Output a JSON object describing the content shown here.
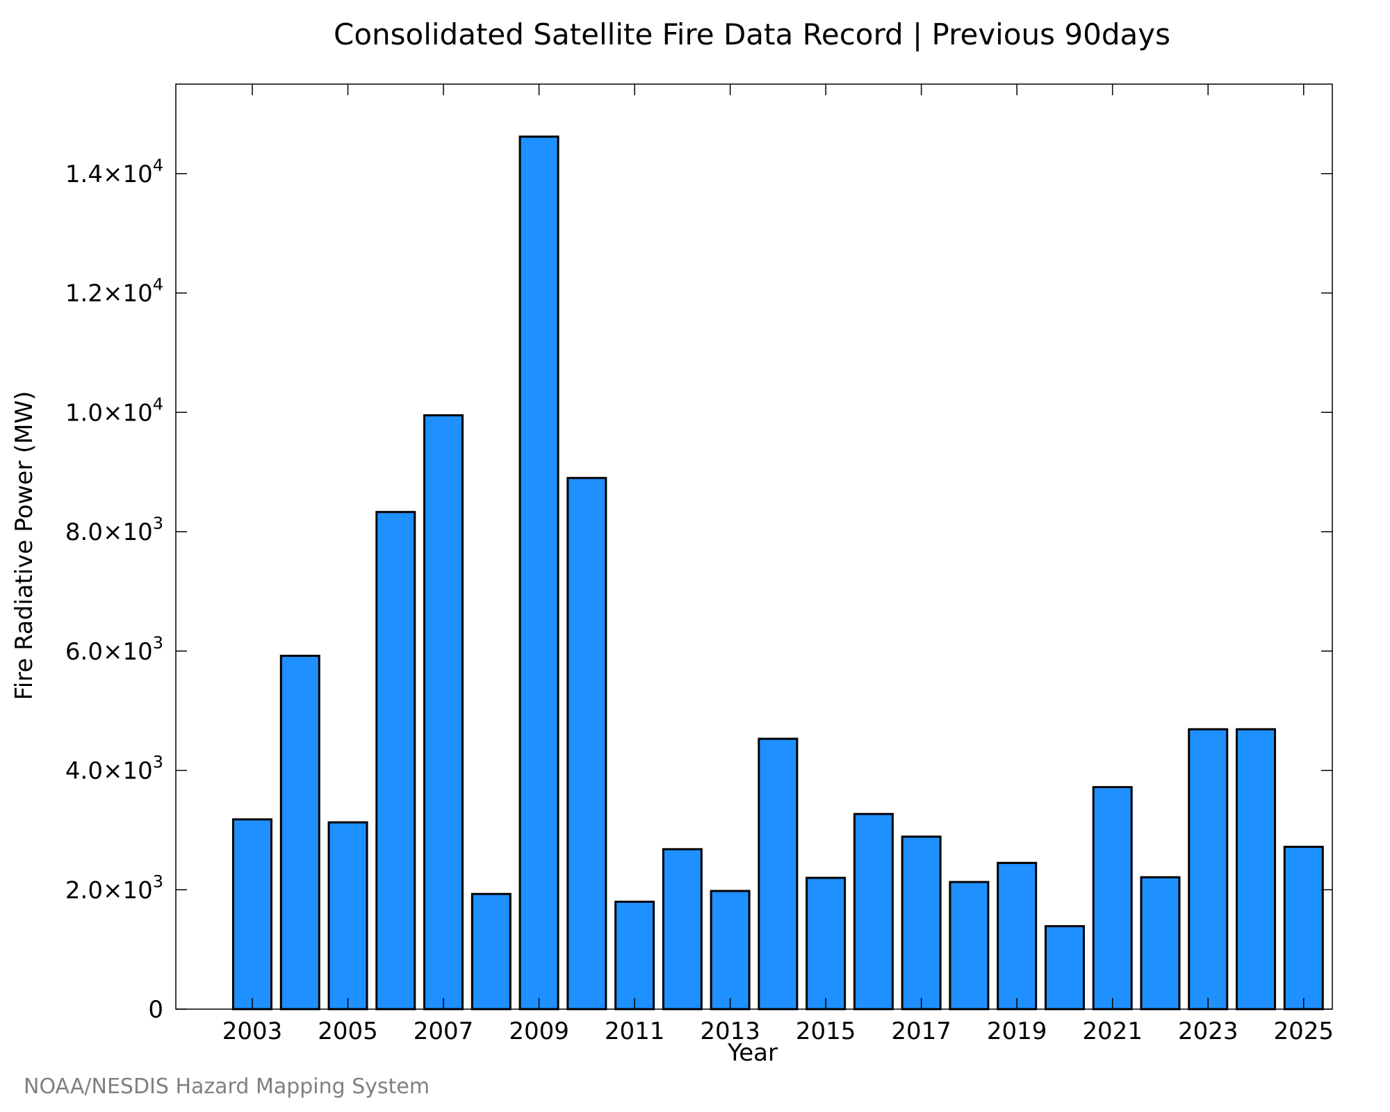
{
  "chart_data": {
    "type": "bar",
    "title": "Consolidated Satellite Fire Data Record | Previous 90days",
    "xlabel": "Year",
    "ylabel": "Fire Radiative Power (MW)",
    "credit": "NOAA/NESDIS Hazard Mapping System",
    "bar_color": "#1e90ff",
    "categories": [
      2003,
      2004,
      2005,
      2006,
      2007,
      2008,
      2009,
      2010,
      2011,
      2012,
      2013,
      2014,
      2015,
      2016,
      2017,
      2018,
      2019,
      2020,
      2021,
      2022,
      2023,
      2024,
      2025
    ],
    "values": [
      3180,
      5920,
      3130,
      8330,
      9950,
      1930,
      14620,
      8900,
      1800,
      2680,
      1980,
      4530,
      2200,
      3270,
      2890,
      2130,
      2450,
      1390,
      3720,
      2210,
      4690,
      4690,
      2720
    ],
    "xlim": [
      2001.4,
      2025.6
    ],
    "ylim": [
      0,
      15500
    ],
    "x_ticks": [
      {
        "value": 2003,
        "label": "2003"
      },
      {
        "value": 2005,
        "label": "2005"
      },
      {
        "value": 2007,
        "label": "2007"
      },
      {
        "value": 2009,
        "label": "2009"
      },
      {
        "value": 2011,
        "label": "2011"
      },
      {
        "value": 2013,
        "label": "2013"
      },
      {
        "value": 2015,
        "label": "2015"
      },
      {
        "value": 2017,
        "label": "2017"
      },
      {
        "value": 2019,
        "label": "2019"
      },
      {
        "value": 2021,
        "label": "2021"
      },
      {
        "value": 2023,
        "label": "2023"
      },
      {
        "value": 2025,
        "label": "2025"
      }
    ],
    "y_ticks": [
      {
        "value": 0,
        "mantissa": "0",
        "exp": ""
      },
      {
        "value": 2000,
        "mantissa": "2.0×10",
        "exp": "3"
      },
      {
        "value": 4000,
        "mantissa": "4.0×10",
        "exp": "3"
      },
      {
        "value": 6000,
        "mantissa": "6.0×10",
        "exp": "3"
      },
      {
        "value": 8000,
        "mantissa": "8.0×10",
        "exp": "3"
      },
      {
        "value": 10000,
        "mantissa": "1.0×10",
        "exp": "4"
      },
      {
        "value": 12000,
        "mantissa": "1.2×10",
        "exp": "4"
      },
      {
        "value": 14000,
        "mantissa": "1.4×10",
        "exp": "4"
      }
    ],
    "grid": false,
    "legend": "none"
  }
}
